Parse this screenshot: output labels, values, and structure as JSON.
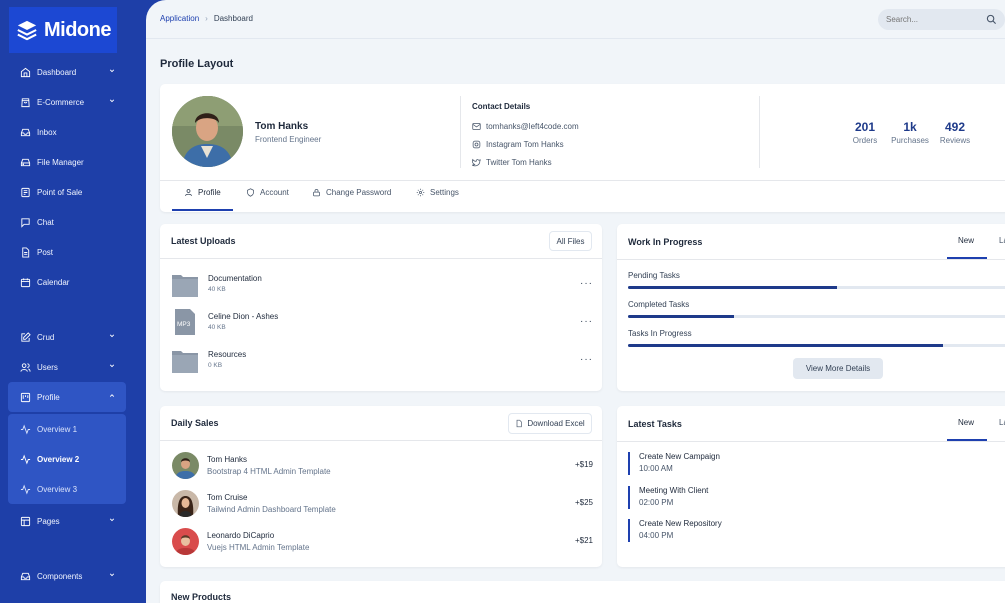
{
  "app": {
    "brand": "Midone"
  },
  "sidebar": {
    "items": [
      {
        "label": "Dashboard",
        "icon": "home-icon",
        "chevron": true
      },
      {
        "label": "E-Commerce",
        "icon": "shopping-bag-icon",
        "chevron": true
      },
      {
        "label": "Inbox",
        "icon": "inbox-icon",
        "chevron": false
      },
      {
        "label": "File Manager",
        "icon": "hard-drive-icon",
        "chevron": false
      },
      {
        "label": "Point of Sale",
        "icon": "credit-card-icon",
        "chevron": false
      },
      {
        "label": "Chat",
        "icon": "message-square-icon",
        "chevron": false
      },
      {
        "label": "Post",
        "icon": "file-text-icon",
        "chevron": false
      },
      {
        "label": "Calendar",
        "icon": "calendar-icon",
        "chevron": false
      }
    ],
    "group2": [
      {
        "label": "Crud",
        "icon": "edit-icon",
        "chevron": true
      },
      {
        "label": "Users",
        "icon": "users-icon",
        "chevron": true
      },
      {
        "label": "Profile",
        "icon": "trello-icon",
        "chevron": true
      }
    ],
    "profile_sub": [
      {
        "label": "Overview 1",
        "bold": false
      },
      {
        "label": "Overview 2",
        "bold": true
      },
      {
        "label": "Overview 3",
        "bold": false
      }
    ],
    "group3": [
      {
        "label": "Pages",
        "icon": "layout-icon",
        "chevron": true
      }
    ],
    "group4": [
      {
        "label": "Components",
        "icon": "inbox-icon",
        "chevron": true
      }
    ]
  },
  "topbar": {
    "breadcrumb": [
      "Application",
      "Dashboard"
    ],
    "search_placeholder": "Search..."
  },
  "page_title": "Profile Layout",
  "profile": {
    "name": "Tom Hanks",
    "role": "Frontend Engineer",
    "contact_title": "Contact Details",
    "email": "tomhanks@left4code.com",
    "instagram": "Instagram Tom Hanks",
    "twitter": "Twitter Tom Hanks",
    "stats": [
      {
        "num": "201",
        "label": "Orders"
      },
      {
        "num": "1k",
        "label": "Purchases"
      },
      {
        "num": "492",
        "label": "Reviews"
      }
    ],
    "tabs": [
      "Profile",
      "Account",
      "Change Password",
      "Settings"
    ]
  },
  "latest_uploads": {
    "title": "Latest Uploads",
    "button": "All Files",
    "files": [
      {
        "name": "Documentation",
        "size": "40 KB",
        "type": "folder"
      },
      {
        "name": "Celine Dion - Ashes",
        "size": "40 KB",
        "type": "MP3"
      },
      {
        "name": "Resources",
        "size": "0 KB",
        "type": "folder"
      }
    ]
  },
  "work_in_progress": {
    "title": "Work In Progress",
    "tabs": [
      "New",
      "La"
    ],
    "tasks": [
      {
        "label": "Pending Tasks",
        "progress": 0.55
      },
      {
        "label": "Completed Tasks",
        "progress": 0.28
      },
      {
        "label": "Tasks In Progress",
        "progress": 0.83
      }
    ],
    "button": "View More Details"
  },
  "daily_sales": {
    "title": "Daily Sales",
    "button": "Download Excel",
    "rows": [
      {
        "name": "Tom Hanks",
        "desc": "Bootstrap 4 HTML Admin Template",
        "amount": "+$19"
      },
      {
        "name": "Tom Cruise",
        "desc": "Tailwind Admin Dashboard Template",
        "amount": "+$25"
      },
      {
        "name": "Leonardo DiCaprio",
        "desc": "Vuejs HTML Admin Template",
        "amount": "+$21"
      }
    ]
  },
  "latest_tasks": {
    "title": "Latest Tasks",
    "tabs": [
      "New",
      "La"
    ],
    "items": [
      {
        "title": "Create New Campaign",
        "time": "10:00 AM"
      },
      {
        "title": "Meeting With Client",
        "time": "02:00 PM"
      },
      {
        "title": "Create New Repository",
        "time": "04:00 PM"
      }
    ]
  },
  "new_products": {
    "title": "New Products"
  },
  "colors": {
    "sidebar": "#1e3fa8",
    "accent": "#1e40af",
    "background": "#f1f5f9"
  }
}
